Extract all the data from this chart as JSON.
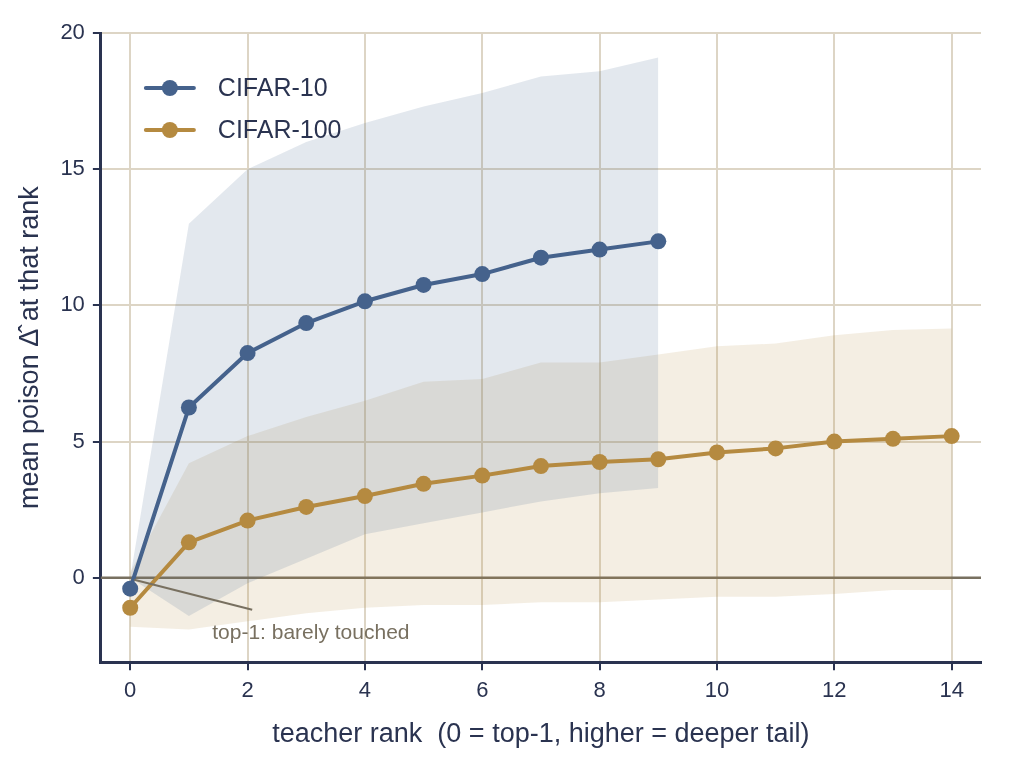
{
  "chart_data": {
    "type": "line",
    "xlabel": "teacher rank  (0 = top-1, higher = deeper tail)",
    "ylabel": "mean poison Δ̂ at that rank",
    "xlim": [
      -0.5,
      14.5
    ],
    "xticks": [
      0,
      2,
      4,
      6,
      8,
      10,
      12,
      14
    ],
    "ylim": [
      -3.1,
      20
    ],
    "yticks": [
      0,
      5,
      10,
      15,
      20
    ],
    "grid": true,
    "legend": "top left",
    "marker": "circle",
    "line_style": "solid",
    "series": [
      {
        "name": "CIFAR-10",
        "color": "#45628c",
        "x": [
          0,
          1,
          2,
          3,
          4,
          5,
          6,
          7,
          8,
          9
        ],
        "values": [
          -0.4,
          6.25,
          8.25,
          9.35,
          10.15,
          10.75,
          11.15,
          11.75,
          12.05,
          12.35
        ],
        "lower": [
          0,
          -1.4,
          -0.2,
          0.7,
          1.6,
          2.0,
          2.4,
          2.8,
          3.1,
          3.3
        ],
        "upper": [
          0,
          13.0,
          15.0,
          16.0,
          16.7,
          17.3,
          17.8,
          18.4,
          18.6,
          19.1
        ]
      },
      {
        "name": "CIFAR-100",
        "color": "#b58a40",
        "x": [
          0,
          1,
          2,
          3,
          4,
          5,
          6,
          7,
          8,
          9,
          10,
          11,
          12,
          13,
          14
        ],
        "values": [
          -1.1,
          1.3,
          2.1,
          2.6,
          3.0,
          3.45,
          3.75,
          4.1,
          4.25,
          4.35,
          4.6,
          4.75,
          5.0,
          5.1,
          5.2
        ],
        "lower": [
          -1.8,
          -1.9,
          -1.6,
          -1.3,
          -1.1,
          -1.0,
          -1.0,
          -0.9,
          -0.9,
          -0.8,
          -0.7,
          -0.7,
          -0.6,
          -0.45,
          -0.45
        ],
        "upper": [
          0.2,
          4.2,
          5.2,
          5.9,
          6.5,
          7.2,
          7.3,
          7.9,
          7.9,
          8.2,
          8.5,
          8.6,
          8.9,
          9.1,
          9.15
        ]
      }
    ],
    "ref_lines": [
      {
        "axis": "y",
        "value": 0,
        "color": "#787060"
      }
    ],
    "annotations": [
      {
        "text": "top-1: barely touched",
        "x": 0,
        "y": 0
      }
    ]
  }
}
